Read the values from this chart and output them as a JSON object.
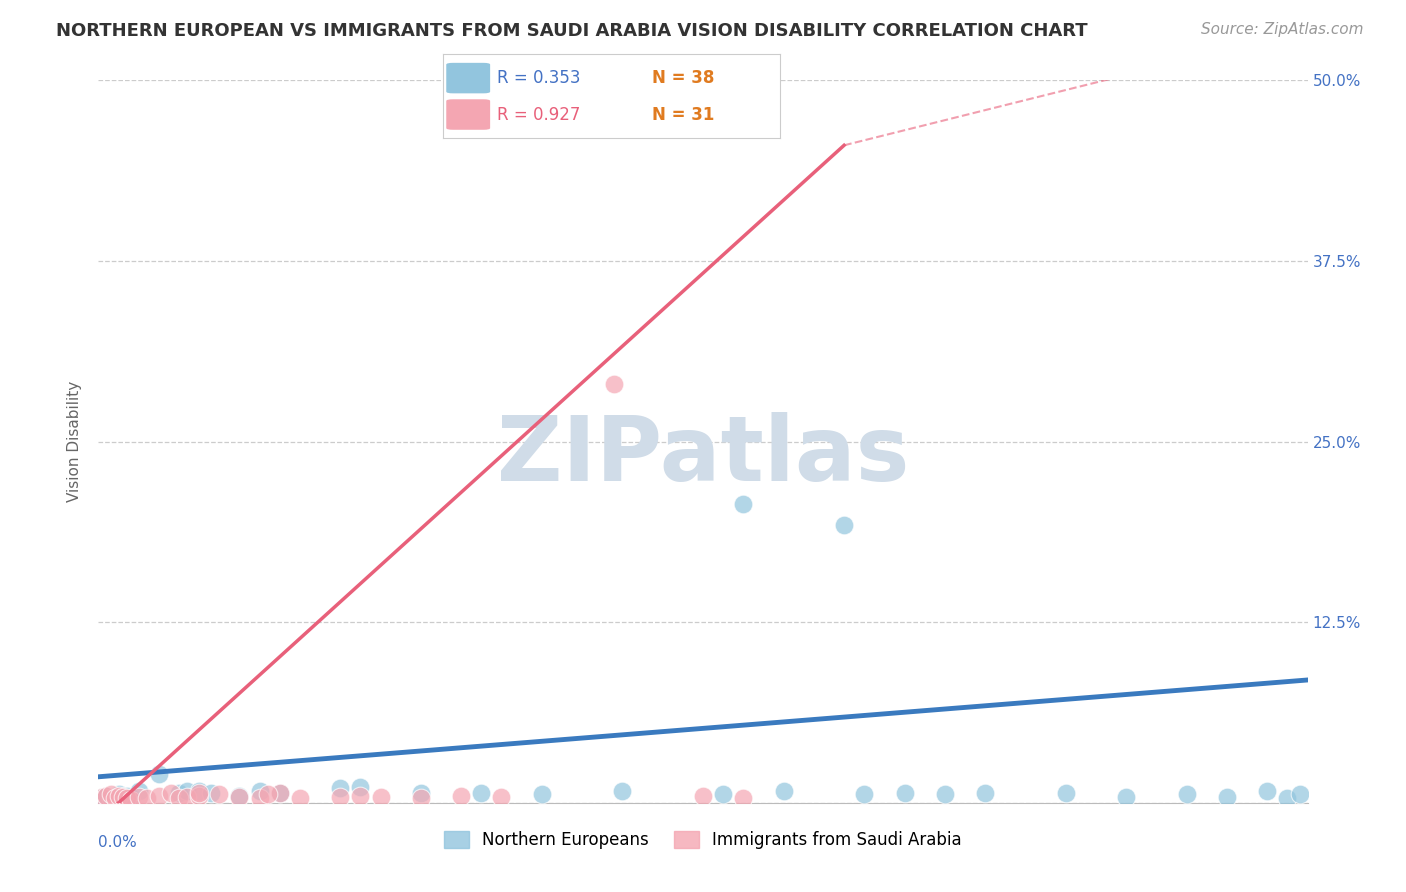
{
  "title": "NORTHERN EUROPEAN VS IMMIGRANTS FROM SAUDI ARABIA VISION DISABILITY CORRELATION CHART",
  "source": "Source: ZipAtlas.com",
  "ylabel": "Vision Disability",
  "xlim": [
    0.0,
    0.3
  ],
  "ylim": [
    0.0,
    0.5
  ],
  "yticks": [
    0.0,
    0.125,
    0.25,
    0.375,
    0.5
  ],
  "ytick_labels": [
    "",
    "12.5%",
    "25.0%",
    "37.5%",
    "50.0%"
  ],
  "watermark": "ZIPatlas",
  "blue_R": "0.353",
  "blue_N": "38",
  "pink_R": "0.927",
  "pink_N": "31",
  "blue_color": "#92c5de",
  "pink_color": "#f4a6b2",
  "blue_line_color": "#3a7abf",
  "pink_line_color": "#e8607a",
  "blue_scatter": [
    [
      0.001,
      0.004
    ],
    [
      0.002,
      0.005
    ],
    [
      0.003,
      0.003
    ],
    [
      0.004,
      0.004
    ],
    [
      0.005,
      0.006
    ],
    [
      0.006,
      0.004
    ],
    [
      0.007,
      0.005
    ],
    [
      0.008,
      0.003
    ],
    [
      0.01,
      0.008
    ],
    [
      0.015,
      0.02
    ],
    [
      0.02,
      0.007
    ],
    [
      0.022,
      0.008
    ],
    [
      0.025,
      0.008
    ],
    [
      0.028,
      0.007
    ],
    [
      0.035,
      0.005
    ],
    [
      0.04,
      0.008
    ],
    [
      0.045,
      0.007
    ],
    [
      0.06,
      0.01
    ],
    [
      0.065,
      0.011
    ],
    [
      0.08,
      0.007
    ],
    [
      0.095,
      0.007
    ],
    [
      0.11,
      0.006
    ],
    [
      0.13,
      0.008
    ],
    [
      0.16,
      0.207
    ],
    [
      0.185,
      0.192
    ],
    [
      0.155,
      0.006
    ],
    [
      0.17,
      0.008
    ],
    [
      0.19,
      0.006
    ],
    [
      0.2,
      0.007
    ],
    [
      0.21,
      0.006
    ],
    [
      0.22,
      0.007
    ],
    [
      0.24,
      0.007
    ],
    [
      0.255,
      0.004
    ],
    [
      0.27,
      0.006
    ],
    [
      0.28,
      0.004
    ],
    [
      0.29,
      0.008
    ],
    [
      0.295,
      0.003
    ],
    [
      0.298,
      0.006
    ]
  ],
  "pink_scatter": [
    [
      0.001,
      0.004
    ],
    [
      0.002,
      0.005
    ],
    [
      0.003,
      0.006
    ],
    [
      0.004,
      0.003
    ],
    [
      0.005,
      0.005
    ],
    [
      0.006,
      0.004
    ],
    [
      0.007,
      0.003
    ],
    [
      0.008,
      0.002
    ],
    [
      0.01,
      0.004
    ],
    [
      0.012,
      0.003
    ],
    [
      0.015,
      0.005
    ],
    [
      0.018,
      0.007
    ],
    [
      0.02,
      0.003
    ],
    [
      0.022,
      0.004
    ],
    [
      0.025,
      0.005
    ],
    [
      0.03,
      0.006
    ],
    [
      0.04,
      0.003
    ],
    [
      0.045,
      0.007
    ],
    [
      0.05,
      0.003
    ],
    [
      0.06,
      0.004
    ],
    [
      0.065,
      0.005
    ],
    [
      0.07,
      0.004
    ],
    [
      0.08,
      0.003
    ],
    [
      0.09,
      0.005
    ],
    [
      0.1,
      0.004
    ],
    [
      0.128,
      0.29
    ],
    [
      0.15,
      0.005
    ],
    [
      0.16,
      0.003
    ],
    [
      0.025,
      0.007
    ],
    [
      0.035,
      0.004
    ],
    [
      0.042,
      0.006
    ]
  ],
  "blue_regline": [
    [
      0.0,
      0.018
    ],
    [
      0.3,
      0.085
    ]
  ],
  "pink_regline_solid": [
    [
      0.005,
      0.0
    ],
    [
      0.185,
      0.455
    ]
  ],
  "pink_regline_dashed": [
    [
      0.185,
      0.455
    ],
    [
      0.3,
      0.535
    ]
  ],
  "grid_color": "#cccccc",
  "bg_color": "#ffffff",
  "title_color": "#333333",
  "axis_label_color": "#666666",
  "right_tick_color": "#4472c4",
  "bottom_tick_color": "#4472c4",
  "legend_r_blue_color": "#4472c4",
  "legend_r_pink_color": "#e8607a",
  "legend_n_color": "#e07b20",
  "watermark_color": "#d0dce8",
  "title_fontsize": 13,
  "ylabel_fontsize": 11,
  "tick_fontsize": 11,
  "legend_fontsize": 12,
  "source_fontsize": 11,
  "watermark_fontsize": 65
}
